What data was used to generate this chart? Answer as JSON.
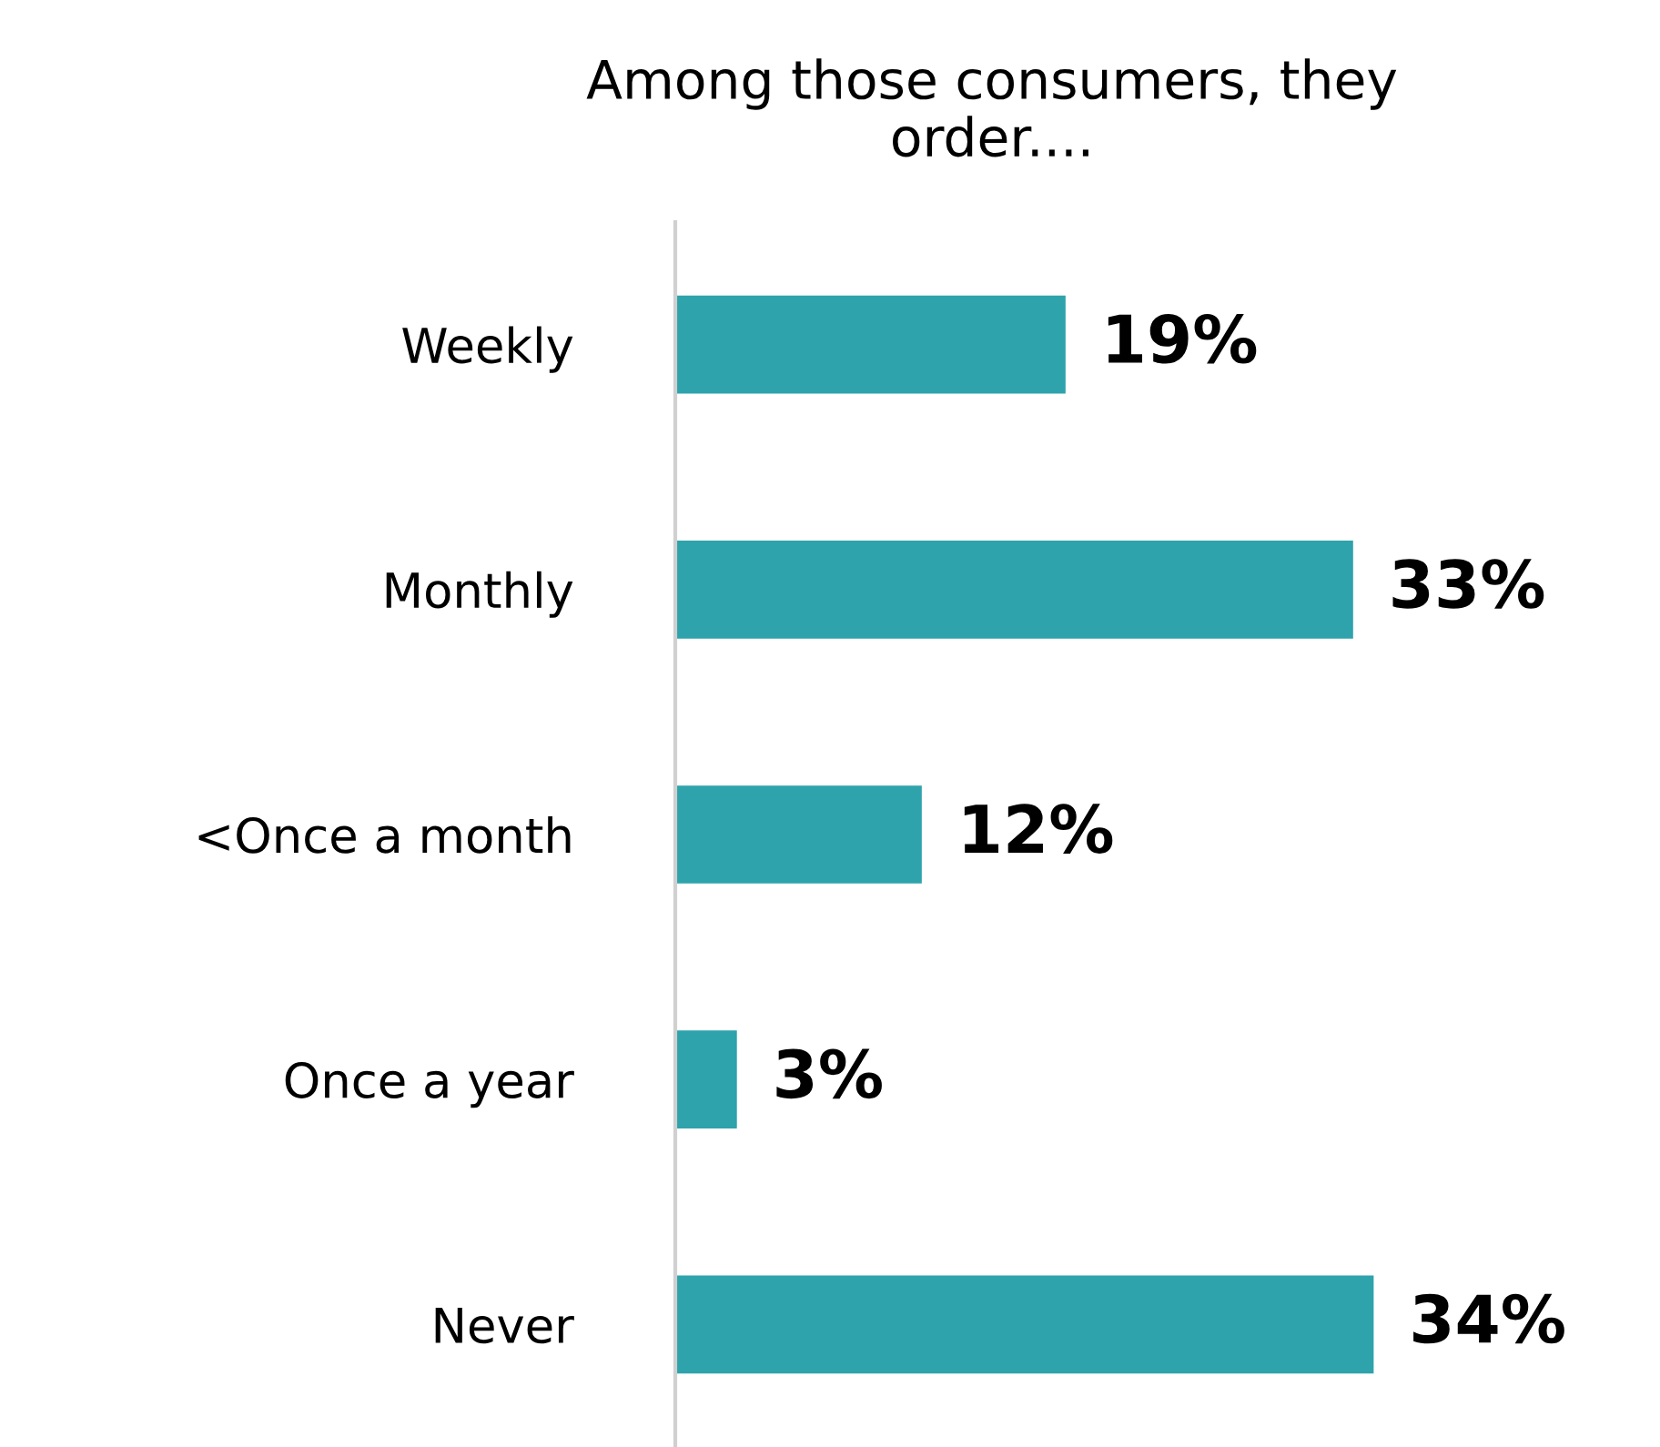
{
  "chart_data": {
    "type": "bar",
    "orientation": "horizontal",
    "title": "Among those consumers, they\norder....",
    "categories": [
      "Weekly",
      "Monthly",
      "<Once a month",
      "Once a year",
      "Never"
    ],
    "values": [
      19,
      33,
      12,
      3,
      34
    ],
    "value_labels": [
      "19%",
      "33%",
      "12%",
      "3%",
      "34%"
    ],
    "color": "#2ea3ac",
    "grid": false,
    "legend": false
  }
}
